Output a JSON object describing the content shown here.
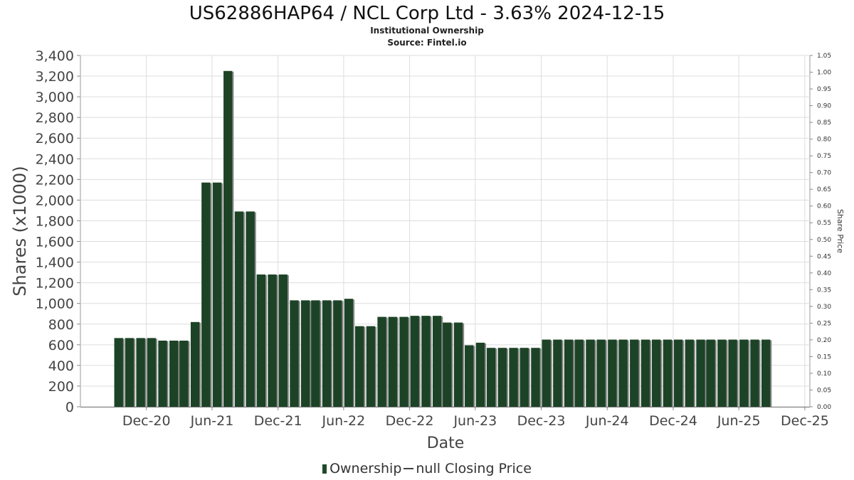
{
  "header": {
    "title": "US62886HAP64 / NCL Corp Ltd - 3.63% 2024-12-15",
    "subtitle": "Institutional Ownership",
    "source": "Source: Fintel.io"
  },
  "legend": {
    "ownership": "Ownership",
    "closing_price": "null Closing Price"
  },
  "colors": {
    "bar": "#1c4326",
    "bar_side": "#8a8a8a",
    "grid": "#dddddd",
    "axis": "#888888"
  },
  "chart_data": {
    "type": "bar",
    "title": "US62886HAP64 / NCL Corp Ltd - 3.63% 2024-12-15",
    "subtitle": "Institutional Ownership",
    "xlabel": "Date",
    "ylabel": "Shares (x1000)",
    "y2label": "Share Price",
    "ylim": [
      0,
      3400
    ],
    "y2lim": [
      0,
      1.05
    ],
    "grid": true,
    "legend_position": "bottom",
    "yticks": [
      "0",
      "200",
      "400",
      "600",
      "800",
      "1,000",
      "1,200",
      "1,400",
      "1,600",
      "1,800",
      "2,000",
      "2,200",
      "2,400",
      "2,600",
      "2,800",
      "3,000",
      "3,200",
      "3,400"
    ],
    "y2ticks": [
      "0.00",
      "0.05",
      "0.10",
      "0.15",
      "0.20",
      "0.25",
      "0.30",
      "0.35",
      "0.40",
      "0.45",
      "0.50",
      "0.55",
      "0.60",
      "0.65",
      "0.70",
      "0.75",
      "0.80",
      "0.85",
      "0.90",
      "0.95",
      "1.00",
      "1.05"
    ],
    "xticks": [
      "Dec-20",
      "Jun-21",
      "Dec-21",
      "Jun-22",
      "Dec-22",
      "Jun-23",
      "Dec-23",
      "Jun-24",
      "Dec-24",
      "Jun-25",
      "Dec-25"
    ],
    "x_domain": [
      "2020-06-01",
      "2025-12-15"
    ],
    "x_tick_dates": [
      "2020-12-01",
      "2021-06-01",
      "2021-12-01",
      "2022-06-01",
      "2022-12-01",
      "2023-06-01",
      "2023-12-01",
      "2024-06-01",
      "2024-12-01",
      "2025-06-01",
      "2025-12-01"
    ],
    "series": [
      {
        "name": "Ownership",
        "x": [
          "2020-09-15",
          "2020-10-15",
          "2020-11-15",
          "2020-12-15",
          "2021-01-15",
          "2021-02-15",
          "2021-03-15",
          "2021-04-15",
          "2021-05-15",
          "2021-06-15",
          "2021-07-15",
          "2021-08-15",
          "2021-09-15",
          "2021-10-15",
          "2021-11-15",
          "2021-12-15",
          "2022-01-15",
          "2022-02-15",
          "2022-03-15",
          "2022-04-15",
          "2022-05-15",
          "2022-06-15",
          "2022-07-15",
          "2022-08-15",
          "2022-09-15",
          "2022-10-15",
          "2022-11-15",
          "2022-12-15",
          "2023-01-15",
          "2023-02-15",
          "2023-03-15",
          "2023-04-15",
          "2023-05-15",
          "2023-06-15",
          "2023-07-15",
          "2023-08-15",
          "2023-09-15",
          "2023-10-15",
          "2023-11-15",
          "2023-12-15",
          "2024-01-15",
          "2024-02-15",
          "2024-03-15",
          "2024-04-15",
          "2024-05-15",
          "2024-06-15",
          "2024-07-15",
          "2024-08-15",
          "2024-09-15",
          "2024-10-15",
          "2024-11-15",
          "2024-12-15",
          "2025-01-15",
          "2025-02-15",
          "2025-03-15",
          "2025-04-15",
          "2025-05-15",
          "2025-06-15",
          "2025-07-15",
          "2025-08-15"
        ],
        "values": [
          665,
          665,
          665,
          665,
          640,
          640,
          640,
          820,
          2170,
          2170,
          3250,
          1890,
          1890,
          1280,
          1280,
          1280,
          1030,
          1030,
          1030,
          1030,
          1030,
          1045,
          780,
          780,
          870,
          870,
          870,
          880,
          880,
          880,
          815,
          815,
          595,
          620,
          570,
          570,
          570,
          570,
          570,
          650,
          650,
          650,
          650,
          650,
          650,
          650,
          650,
          650,
          650,
          650,
          650,
          650,
          650,
          650,
          650,
          650,
          650,
          650,
          650,
          650
        ]
      }
    ]
  }
}
